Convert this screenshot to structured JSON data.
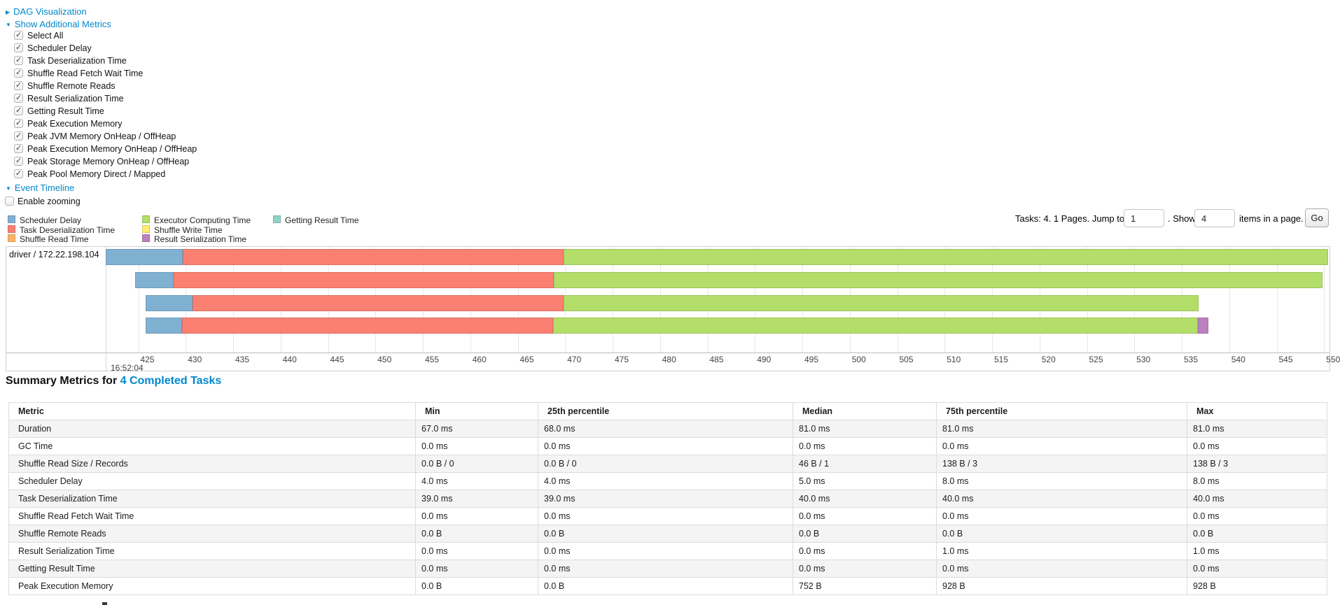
{
  "colors": {
    "link": "#0088cc",
    "scheduler_delay": "#80B1D3",
    "task_deserialization": "#FB8072",
    "shuffle_read": "#FDB462",
    "executor_computing": "#B3DE69",
    "shuffle_write": "#FFED6F",
    "result_serialization": "#BC80BD",
    "getting_result": "#8DD3C7"
  },
  "toggles": {
    "dag": {
      "label": "DAG Visualization",
      "arrow": "▶",
      "state": "collapsed"
    },
    "metrics": {
      "label": "Show Additional Metrics",
      "arrow": "▼",
      "state": "expanded"
    },
    "timeline": {
      "label": "Event Timeline",
      "arrow": "▼",
      "state": "expanded"
    }
  },
  "metrics_panel": {
    "items": [
      {
        "label": "Select All",
        "checked": true
      },
      {
        "label": "Scheduler Delay",
        "checked": true
      },
      {
        "label": "Task Deserialization Time",
        "checked": true
      },
      {
        "label": "Shuffle Read Fetch Wait Time",
        "checked": true
      },
      {
        "label": "Shuffle Remote Reads",
        "checked": true
      },
      {
        "label": "Result Serialization Time",
        "checked": true
      },
      {
        "label": "Getting Result Time",
        "checked": true
      },
      {
        "label": "Peak Execution Memory",
        "checked": true
      },
      {
        "label": "Peak JVM Memory OnHeap / OffHeap",
        "checked": true
      },
      {
        "label": "Peak Execution Memory OnHeap / OffHeap",
        "checked": true
      },
      {
        "label": "Peak Storage Memory OnHeap / OffHeap",
        "checked": true
      },
      {
        "label": "Peak Pool Memory Direct / Mapped",
        "checked": true
      }
    ]
  },
  "enable_zooming": {
    "label": "Enable zooming",
    "checked": false
  },
  "legend": {
    "columns": [
      [
        {
          "label": "Scheduler Delay",
          "color_key": "scheduler_delay"
        },
        {
          "label": "Task Deserialization Time",
          "color_key": "task_deserialization"
        },
        {
          "label": "Shuffle Read Time",
          "color_key": "shuffle_read"
        }
      ],
      [
        {
          "label": "Executor Computing Time",
          "color_key": "executor_computing"
        },
        {
          "label": "Shuffle Write Time",
          "color_key": "shuffle_write"
        },
        {
          "label": "Result Serialization Time",
          "color_key": "result_serialization"
        }
      ],
      [
        {
          "label": "Getting Result Time",
          "color_key": "getting_result"
        }
      ]
    ]
  },
  "pagination": {
    "summary_label": "Tasks: 4. 1 Pages. Jump to",
    "jump_value": "1",
    "show_label": ". Show",
    "show_value": "4",
    "suffix_label": "items in a page.",
    "go_label": "Go"
  },
  "timeline_chart": {
    "group_label": "driver / 172.22.198.104",
    "time_label": "16:52:04",
    "axis_ticks": [
      425,
      430,
      435,
      440,
      445,
      450,
      455,
      460,
      465,
      470,
      475,
      480,
      485,
      490,
      495,
      500,
      505,
      510,
      515,
      520,
      525,
      530,
      535,
      540,
      545,
      550
    ],
    "tasks": [
      {
        "segments": [
          {
            "type": "scheduler_delay",
            "start": 421.6,
            "end": 429.7
          },
          {
            "type": "task_deserialization",
            "start": 429.7,
            "end": 469.8
          },
          {
            "type": "executor_computing",
            "start": 469.8,
            "end": 550.4
          }
        ]
      },
      {
        "segments": [
          {
            "type": "scheduler_delay",
            "start": 424.7,
            "end": 428.7
          },
          {
            "type": "task_deserialization",
            "start": 428.7,
            "end": 468.8
          },
          {
            "type": "executor_computing",
            "start": 468.8,
            "end": 549.8
          }
        ]
      },
      {
        "segments": [
          {
            "type": "scheduler_delay",
            "start": 425.8,
            "end": 430.7
          },
          {
            "type": "task_deserialization",
            "start": 430.7,
            "end": 469.8
          },
          {
            "type": "executor_computing",
            "start": 469.8,
            "end": 536.8
          }
        ]
      },
      {
        "segments": [
          {
            "type": "scheduler_delay",
            "start": 425.8,
            "end": 429.6
          },
          {
            "type": "task_deserialization",
            "start": 429.6,
            "end": 468.7
          },
          {
            "type": "executor_computing",
            "start": 468.7,
            "end": 536.7
          },
          {
            "type": "result_serialization",
            "start": 536.7,
            "end": 537.8
          }
        ]
      }
    ]
  },
  "summary_metrics": {
    "title_prefix": "Summary Metrics for",
    "title_link": "4 Completed Tasks",
    "headers": [
      "Metric",
      "Min",
      "25th percentile",
      "Median",
      "75th percentile",
      "Max"
    ],
    "rows": [
      {
        "metric": "Duration",
        "values": [
          "67.0 ms",
          "68.0 ms",
          "81.0 ms",
          "81.0 ms",
          "81.0 ms"
        ]
      },
      {
        "metric": "GC Time",
        "values": [
          "0.0 ms",
          "0.0 ms",
          "0.0 ms",
          "0.0 ms",
          "0.0 ms"
        ]
      },
      {
        "metric": "Shuffle Read Size / Records",
        "values": [
          "0.0 B / 0",
          "0.0 B / 0",
          "46 B / 1",
          "138 B / 3",
          "138 B / 3"
        ]
      },
      {
        "metric": "Scheduler Delay",
        "values": [
          "4.0 ms",
          "4.0 ms",
          "5.0 ms",
          "8.0 ms",
          "8.0 ms"
        ]
      },
      {
        "metric": "Task Deserialization Time",
        "values": [
          "39.0 ms",
          "39.0 ms",
          "40.0 ms",
          "40.0 ms",
          "40.0 ms"
        ]
      },
      {
        "metric": "Shuffle Read Fetch Wait Time",
        "values": [
          "0.0 ms",
          "0.0 ms",
          "0.0 ms",
          "0.0 ms",
          "0.0 ms"
        ]
      },
      {
        "metric": "Shuffle Remote Reads",
        "values": [
          "0.0 B",
          "0.0 B",
          "0.0 B",
          "0.0 B",
          "0.0 B"
        ]
      },
      {
        "metric": "Result Serialization Time",
        "values": [
          "0.0 ms",
          "0.0 ms",
          "0.0 ms",
          "1.0 ms",
          "1.0 ms"
        ]
      },
      {
        "metric": "Getting Result Time",
        "values": [
          "0.0 ms",
          "0.0 ms",
          "0.0 ms",
          "0.0 ms",
          "0.0 ms"
        ]
      },
      {
        "metric": "Peak Execution Memory",
        "values": [
          "0.0 B",
          "0.0 B",
          "752 B",
          "928 B",
          "928 B"
        ]
      }
    ]
  }
}
